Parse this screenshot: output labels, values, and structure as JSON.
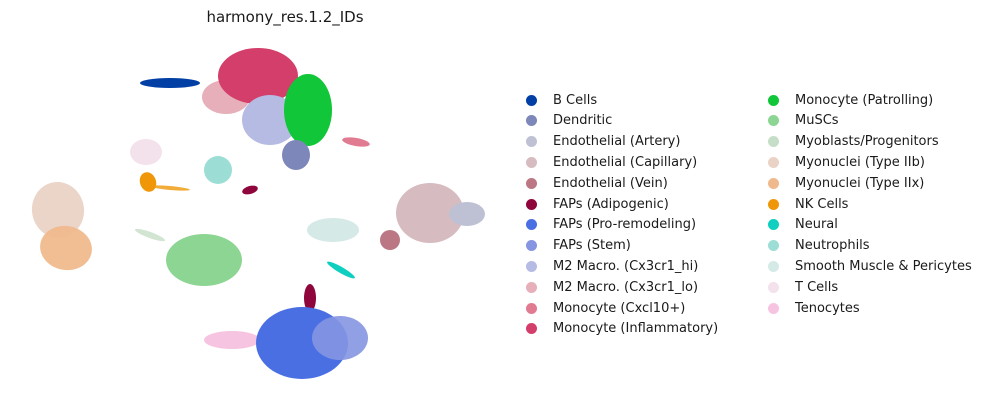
{
  "chart_data": {
    "type": "scatter",
    "title": "harmony_res.1.2_IDs",
    "xlabel": "",
    "ylabel": "",
    "axes_visible": false,
    "legend_position": "right",
    "legend_columns": 2,
    "categories": [
      {
        "name": "B Cells",
        "color": "#023fa5"
      },
      {
        "name": "Dendritic",
        "color": "#7d87b9"
      },
      {
        "name": "Endothelial (Artery)",
        "color": "#bec1d4"
      },
      {
        "name": "Endothelial (Capillary)",
        "color": "#d6bcc0"
      },
      {
        "name": "Endothelial (Vein)",
        "color": "#bb7784"
      },
      {
        "name": "FAPs (Adipogenic)",
        "color": "#8e063b"
      },
      {
        "name": "FAPs (Pro-remodeling)",
        "color": "#4a6fe3"
      },
      {
        "name": "FAPs (Stem)",
        "color": "#8595e1"
      },
      {
        "name": "M2 Macro. (Cx3cr1_hi)",
        "color": "#b5bbe3"
      },
      {
        "name": "M2 Macro. (Cx3cr1_lo)",
        "color": "#e6afb9"
      },
      {
        "name": "Monocyte (Cxcl10+)",
        "color": "#e07b91"
      },
      {
        "name": "Monocyte (Inflammatory)",
        "color": "#d33f6a"
      },
      {
        "name": "Monocyte (Patrolling)",
        "color": "#11c638"
      },
      {
        "name": "MuSCs",
        "color": "#8dd593"
      },
      {
        "name": "Myoblasts/Progenitors",
        "color": "#c6dec7"
      },
      {
        "name": "Myonuclei (Type IIb)",
        "color": "#ead3c6"
      },
      {
        "name": "Myonuclei (Type IIx)",
        "color": "#f0b98d"
      },
      {
        "name": "NK Cells",
        "color": "#ef9708"
      },
      {
        "name": "Neural",
        "color": "#0fcfc0"
      },
      {
        "name": "Neutrophils",
        "color": "#9cded6"
      },
      {
        "name": "Smooth Muscle & Pericytes",
        "color": "#d5eae7"
      },
      {
        "name": "T Cells",
        "color": "#f3e1eb"
      },
      {
        "name": "Tenocytes",
        "color": "#f6c4e1"
      }
    ]
  }
}
